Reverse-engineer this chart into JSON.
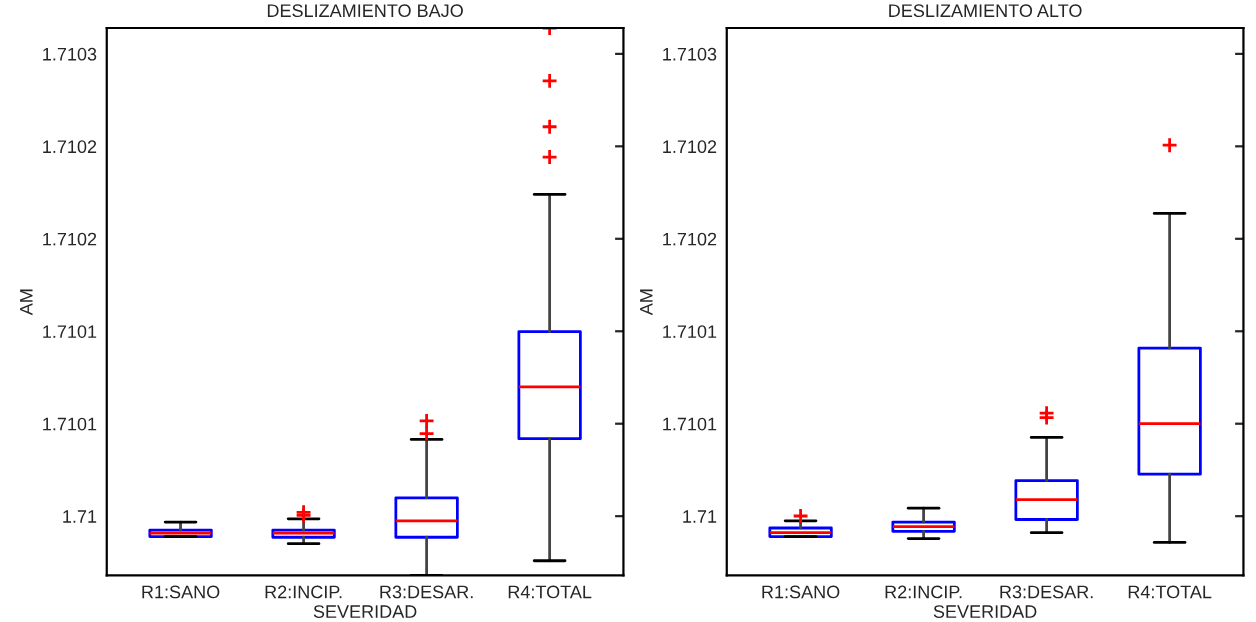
{
  "chart_data": [
    {
      "type": "box",
      "title": "DESLIZAMIENTO BAJO",
      "xlabel": "SEVERIDAD",
      "ylabel": "AM",
      "categories": [
        "R1:SANO",
        "R2:INCIP.",
        "R3:DESAR.",
        "R4:TOTAL"
      ],
      "ylim": [
        1.709968,
        1.710264
      ],
      "yticks": [
        1.71,
        {
          "value": 1.71005,
          "label": "1.7101"
        },
        1.7101,
        {
          "value": 1.71015,
          "label": "1.7102"
        },
        1.7102,
        {
          "value": 1.71025,
          "label": "1.7103"
        }
      ],
      "grid": false,
      "series": [
        {
          "color": "#0000ff",
          "boxes": [
            {
              "low": 1.709989,
              "q1": 1.709989,
              "median": 1.7099908,
              "q3": 1.7099925,
              "high": 1.7099968
            },
            {
              "low": 1.7099851,
              "q1": 1.7099886,
              "median": 1.7099908,
              "q3": 1.7099925,
              "high": 1.7099986,
              "outliers": [
                1.7100021,
                1.7100004
              ]
            },
            {
              "low": 1.709968,
              "q1": 1.7099886,
              "median": 1.7099975,
              "q3": 1.7100099,
              "high": 1.7100415,
              "outliers": [
                1.7100515,
                1.7100447
              ]
            },
            {
              "low": 1.7099759,
              "q1": 1.7100419,
              "median": 1.7100699,
              "q3": 1.7100998,
              "high": 1.710174,
              "outliers": [
                1.710264,
                1.7102354,
                1.7102106,
                1.7101942
              ]
            }
          ]
        }
      ]
    },
    {
      "type": "box",
      "title": "DESLIZAMIENTO ALTO",
      "xlabel": "SEVERIDAD",
      "ylabel": "AM",
      "categories": [
        "R1:SANO",
        "R2:INCIP.",
        "R3:DESAR.",
        "R4:TOTAL"
      ],
      "ylim": [
        1.709968,
        1.710264
      ],
      "yticks": [
        1.71,
        {
          "value": 1.71005,
          "label": "1.7101"
        },
        1.7101,
        {
          "value": 1.71015,
          "label": "1.7102"
        },
        1.7102,
        {
          "value": 1.71025,
          "label": "1.7103"
        }
      ],
      "grid": false,
      "series": [
        {
          "color": "#0000ff",
          "boxes": [
            {
              "low": 1.709989,
              "q1": 1.709989,
              "median": 1.7099911,
              "q3": 1.7099936,
              "high": 1.7099975,
              "outliers": [
                1.7100001
              ]
            },
            {
              "low": 1.7099879,
              "q1": 1.7099918,
              "median": 1.7099943,
              "q3": 1.7099968,
              "high": 1.7100043
            },
            {
              "low": 1.7099911,
              "q1": 1.7099982,
              "median": 1.7100089,
              "q3": 1.7100192,
              "high": 1.7100426,
              "outliers": [
                1.7100557,
                1.7100533
              ]
            },
            {
              "low": 1.7099858,
              "q1": 1.7100227,
              "median": 1.7100501,
              "q3": 1.7100909,
              "high": 1.7101637,
              "outliers": [
                1.7102006
              ]
            }
          ]
        }
      ]
    }
  ]
}
